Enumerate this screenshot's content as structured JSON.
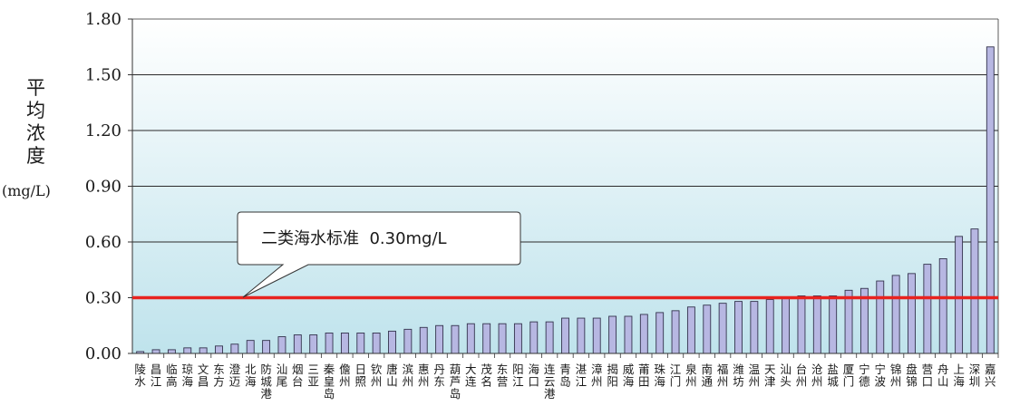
{
  "chart_data": {
    "type": "bar",
    "ylabel": "平均浓度",
    "yunit": "(mg/L)",
    "ylim": [
      0,
      1.8
    ],
    "yticks": [
      "0.00",
      "0.30",
      "0.60",
      "0.90",
      "1.20",
      "1.50",
      "1.80"
    ],
    "grid": true,
    "categories": [
      "陵水",
      "昌江",
      "临高",
      "琼海",
      "文昌",
      "东方",
      "澄迈",
      "北海",
      "防城港",
      "汕尾",
      "烟台",
      "三亚",
      "秦皇岛",
      "儋州",
      "日照",
      "钦州",
      "唐山",
      "滨州",
      "惠州",
      "丹东",
      "葫芦岛",
      "大连",
      "茂名",
      "东营",
      "阳江",
      "海口",
      "连云港",
      "青岛",
      "湛江",
      "漳州",
      "揭阳",
      "威海",
      "莆田",
      "珠海",
      "江门",
      "泉州",
      "南通",
      "福州",
      "潍坊",
      "温州",
      "天津",
      "汕头",
      "台州",
      "沧州",
      "盐城",
      "厦门",
      "宁德",
      "宁波",
      "锦州",
      "盘锦",
      "营口",
      "舟山",
      "上海",
      "深圳",
      "嘉兴"
    ],
    "values": [
      0.01,
      0.02,
      0.02,
      0.03,
      0.03,
      0.04,
      0.05,
      0.07,
      0.07,
      0.09,
      0.1,
      0.1,
      0.11,
      0.11,
      0.11,
      0.11,
      0.12,
      0.13,
      0.14,
      0.15,
      0.15,
      0.16,
      0.16,
      0.16,
      0.16,
      0.17,
      0.17,
      0.19,
      0.19,
      0.19,
      0.2,
      0.2,
      0.21,
      0.22,
      0.23,
      0.25,
      0.26,
      0.27,
      0.28,
      0.28,
      0.29,
      0.3,
      0.31,
      0.31,
      0.31,
      0.34,
      0.35,
      0.39,
      0.42,
      0.43,
      0.48,
      0.51,
      0.63,
      0.67,
      1.65
    ],
    "reference_line": {
      "value": 0.3,
      "label": "二类海水标准  0.30mg/L",
      "color": "#e8231f"
    },
    "bar_color": "#b7b7e2",
    "background_gradient": [
      "#ffffff",
      "#bfe3ec"
    ]
  }
}
